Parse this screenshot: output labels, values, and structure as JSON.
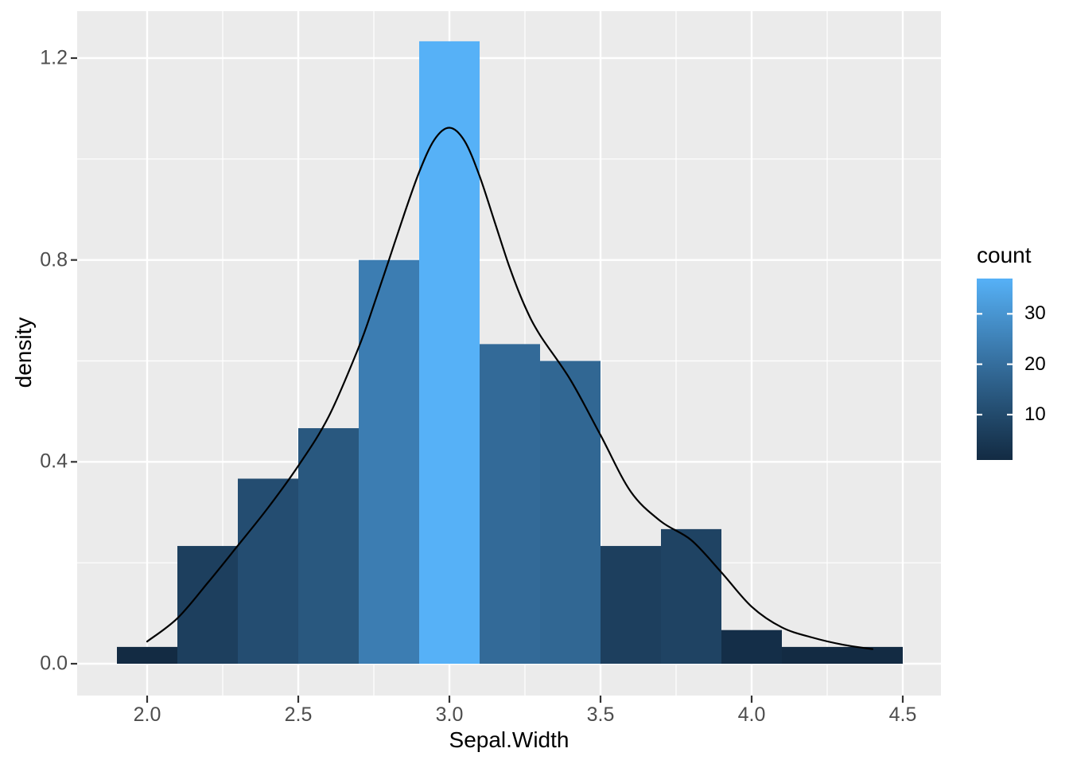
{
  "figure": {
    "background": "#FFFFFF",
    "panel_background": "#EBEBEB",
    "grid_color": "#FFFFFF",
    "tick_mark_color": "#333333",
    "tick_label_color": "#4D4D4D",
    "axis_title_color": "#000000"
  },
  "x_axis": {
    "label": "Sepal.Width",
    "major_ticks": [
      {
        "value": 2.0,
        "label": "2.0"
      },
      {
        "value": 2.5,
        "label": "2.5"
      },
      {
        "value": 3.0,
        "label": "3.0"
      },
      {
        "value": 3.5,
        "label": "3.5"
      },
      {
        "value": 4.0,
        "label": "4.0"
      },
      {
        "value": 4.5,
        "label": "4.5"
      }
    ],
    "minor_ticks": [
      2.25,
      2.75,
      3.25,
      3.75,
      4.25
    ]
  },
  "y_axis": {
    "label": "density",
    "major_ticks": [
      {
        "value": 0.0,
        "label": "0.0"
      },
      {
        "value": 0.4,
        "label": "0.4"
      },
      {
        "value": 0.8,
        "label": "0.8"
      },
      {
        "value": 1.2,
        "label": "1.2"
      }
    ],
    "minor_ticks": [
      0.2,
      0.6,
      1.0
    ]
  },
  "legend": {
    "title": "count",
    "domain": [
      1,
      37
    ],
    "ticks": [
      {
        "value": 30,
        "label": "30"
      },
      {
        "value": 20,
        "label": "20"
      },
      {
        "value": 10,
        "label": "10"
      }
    ],
    "gradient": [
      {
        "at": 0.0,
        "color": "#132B43"
      },
      {
        "at": 0.25,
        "color": "#224A6C"
      },
      {
        "at": 0.528,
        "color": "#356E9D"
      },
      {
        "at": 0.806,
        "color": "#4895D1"
      },
      {
        "at": 1.0,
        "color": "#56B1F7"
      }
    ]
  },
  "chart_data": {
    "type": "bar",
    "subtype": "histogram_with_density_overlay",
    "title": "",
    "xlabel": "Sepal.Width",
    "ylabel": "density",
    "legend_title": "count",
    "legend_position": "right",
    "grid": true,
    "xlim": [
      1.77,
      4.63
    ],
    "ylim": [
      -0.06,
      1.29
    ],
    "bin_width": 0.2,
    "bins": [
      {
        "xmin": 1.9,
        "xmax": 2.1,
        "count": 1,
        "density": 0.0333,
        "fill": "#132B43"
      },
      {
        "xmin": 2.1,
        "xmax": 2.3,
        "count": 7,
        "density": 0.2333,
        "fill": "#1D3F5E"
      },
      {
        "xmin": 2.3,
        "xmax": 2.5,
        "count": 11,
        "density": 0.3667,
        "fill": "#244D71"
      },
      {
        "xmin": 2.5,
        "xmax": 2.7,
        "count": 14,
        "density": 0.4667,
        "fill": "#29587F"
      },
      {
        "xmin": 2.7,
        "xmax": 2.9,
        "count": 24,
        "density": 0.8,
        "fill": "#3C7DB2"
      },
      {
        "xmin": 2.9,
        "xmax": 3.1,
        "count": 37,
        "density": 1.2333,
        "fill": "#56B1F7"
      },
      {
        "xmin": 3.1,
        "xmax": 3.3,
        "count": 19,
        "density": 0.6333,
        "fill": "#336A98"
      },
      {
        "xmin": 3.3,
        "xmax": 3.5,
        "count": 18,
        "density": 0.6,
        "fill": "#316793"
      },
      {
        "xmin": 3.5,
        "xmax": 3.7,
        "count": 7,
        "density": 0.2333,
        "fill": "#1D3F5E"
      },
      {
        "xmin": 3.7,
        "xmax": 3.9,
        "count": 8,
        "density": 0.2667,
        "fill": "#1F4363"
      },
      {
        "xmin": 3.9,
        "xmax": 4.1,
        "count": 2,
        "density": 0.0667,
        "fill": "#142E48"
      },
      {
        "xmin": 4.1,
        "xmax": 4.3,
        "count": 1,
        "density": 0.0333,
        "fill": "#132B43"
      },
      {
        "xmin": 4.3,
        "xmax": 4.5,
        "count": 1,
        "density": 0.0333,
        "fill": "#132B43"
      }
    ],
    "density_curve": {
      "color": "#000000",
      "points": [
        [
          2.0,
          0.044
        ],
        [
          2.1,
          0.09
        ],
        [
          2.2,
          0.16
        ],
        [
          2.3,
          0.234
        ],
        [
          2.4,
          0.309
        ],
        [
          2.5,
          0.392
        ],
        [
          2.6,
          0.489
        ],
        [
          2.7,
          0.627
        ],
        [
          2.75,
          0.711
        ],
        [
          2.8,
          0.8
        ],
        [
          2.85,
          0.89
        ],
        [
          2.9,
          0.974
        ],
        [
          2.95,
          1.038
        ],
        [
          3.0,
          1.062
        ],
        [
          3.05,
          1.036
        ],
        [
          3.1,
          0.966
        ],
        [
          3.15,
          0.875
        ],
        [
          3.2,
          0.784
        ],
        [
          3.25,
          0.708
        ],
        [
          3.3,
          0.651
        ],
        [
          3.4,
          0.563
        ],
        [
          3.5,
          0.453
        ],
        [
          3.6,
          0.341
        ],
        [
          3.7,
          0.282
        ],
        [
          3.8,
          0.245
        ],
        [
          3.9,
          0.181
        ],
        [
          4.0,
          0.113
        ],
        [
          4.1,
          0.072
        ],
        [
          4.2,
          0.052
        ],
        [
          4.3,
          0.038
        ],
        [
          4.4,
          0.029
        ]
      ]
    }
  }
}
